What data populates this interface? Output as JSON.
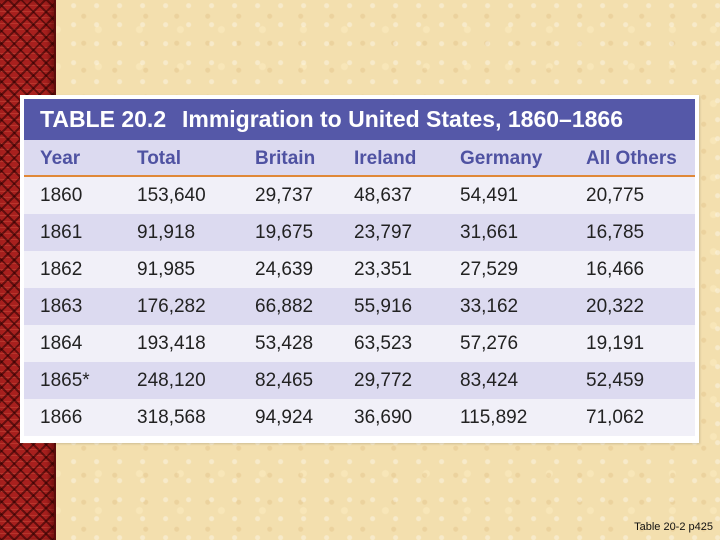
{
  "table": {
    "number": "TABLE 20.2",
    "title": "Immigration to United States, 1860–1866",
    "columns": [
      "Year",
      "Total",
      "Britain",
      "Ireland",
      "Germany",
      "All Others"
    ],
    "rows": [
      [
        "1860",
        "153,640",
        "29,737",
        "48,637",
        "54,491",
        "20,775"
      ],
      [
        "1861",
        "91,918",
        "19,675",
        "23,797",
        "31,661",
        "16,785"
      ],
      [
        "1862",
        "91,985",
        "24,639",
        "23,351",
        "27,529",
        "16,466"
      ],
      [
        "1863",
        "176,282",
        "66,882",
        "55,916",
        "33,162",
        "20,322"
      ],
      [
        "1864",
        "193,418",
        "53,428",
        "63,523",
        "57,276",
        "19,191"
      ],
      [
        "1865*",
        "248,120",
        "82,465",
        "29,772",
        "83,424",
        "52,459"
      ],
      [
        "1866",
        "318,568",
        "94,924",
        "36,690",
        "115,892",
        "71,062"
      ]
    ]
  },
  "caption": "Table 20-2 p425",
  "colors": {
    "title_bar": "#5558a8",
    "header_text": "#4f52a2",
    "header_rule": "#e08838",
    "row_dark": "#dcdaf0",
    "row_light": "#f1f0f8",
    "border_red": "#a8201e",
    "background": "#f3dfae"
  }
}
